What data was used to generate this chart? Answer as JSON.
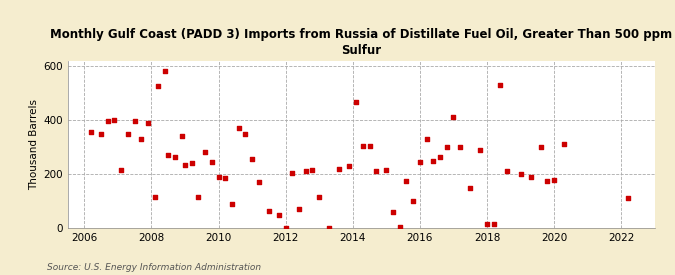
{
  "title": "Monthly Gulf Coast (PADD 3) Imports from Russia of Distillate Fuel Oil, Greater Than 500 ppm\nSulfur",
  "ylabel": "Thousand Barrels",
  "source": "Source: U.S. Energy Information Administration",
  "background_color": "#f5edcf",
  "plot_background_color": "#ffffff",
  "marker_color": "#cc0000",
  "xlim": [
    2005.5,
    2023.0
  ],
  "ylim": [
    0,
    620
  ],
  "yticks": [
    0,
    200,
    400,
    600
  ],
  "xticks": [
    2006,
    2008,
    2010,
    2012,
    2014,
    2016,
    2018,
    2020,
    2022
  ],
  "data_x": [
    2006.2,
    2006.5,
    2006.7,
    2006.9,
    2007.1,
    2007.3,
    2007.5,
    2007.7,
    2007.9,
    2008.1,
    2008.2,
    2008.4,
    2008.5,
    2008.7,
    2008.9,
    2009.0,
    2009.2,
    2009.4,
    2009.6,
    2009.8,
    2010.0,
    2010.2,
    2010.4,
    2010.6,
    2010.8,
    2011.0,
    2011.2,
    2011.5,
    2011.8,
    2012.0,
    2012.2,
    2012.4,
    2012.6,
    2012.8,
    2013.0,
    2013.3,
    2013.6,
    2013.9,
    2014.1,
    2014.3,
    2014.5,
    2014.7,
    2015.0,
    2015.2,
    2015.4,
    2015.6,
    2015.8,
    2016.0,
    2016.2,
    2016.4,
    2016.6,
    2016.8,
    2017.0,
    2017.2,
    2017.5,
    2017.8,
    2018.0,
    2018.2,
    2018.4,
    2018.6,
    2019.0,
    2019.3,
    2019.6,
    2019.8,
    2020.0,
    2020.3,
    2022.2
  ],
  "data_y": [
    355,
    350,
    395,
    400,
    215,
    350,
    395,
    330,
    390,
    115,
    525,
    580,
    270,
    265,
    340,
    235,
    240,
    115,
    280,
    245,
    190,
    185,
    90,
    370,
    350,
    255,
    170,
    65,
    50,
    0,
    205,
    70,
    210,
    215,
    115,
    0,
    220,
    230,
    465,
    305,
    305,
    210,
    215,
    60,
    5,
    175,
    100,
    245,
    330,
    250,
    265,
    300,
    410,
    300,
    150,
    290,
    15,
    15,
    530,
    210,
    200,
    190,
    300,
    175,
    180,
    310,
    110
  ]
}
